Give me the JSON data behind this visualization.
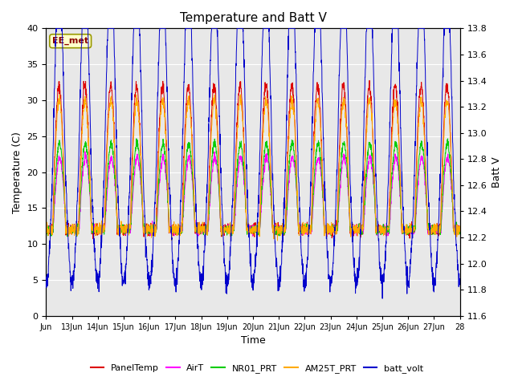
{
  "title": "Temperature and Batt V",
  "ylabel_left": "Temperature (C)",
  "ylabel_right": "Batt V",
  "xlabel": "Time",
  "ylim_left": [
    0,
    40
  ],
  "ylim_right": [
    11.6,
    13.8
  ],
  "yticks_left": [
    0,
    5,
    10,
    15,
    20,
    25,
    30,
    35,
    40
  ],
  "yticks_right": [
    11.6,
    11.8,
    12.0,
    12.2,
    12.4,
    12.6,
    12.8,
    13.0,
    13.2,
    13.4,
    13.6,
    13.8
  ],
  "xtick_positions": [
    0,
    1,
    2,
    3,
    4,
    5,
    6,
    7,
    8,
    9,
    10,
    11,
    12,
    13,
    14,
    15,
    16
  ],
  "xtick_labels": [
    "Jun",
    "13Jun",
    "14Jun",
    "15Jun",
    "16Jun",
    "17Jun",
    "18Jun",
    "19Jun",
    "20Jun",
    "21Jun",
    "22Jun",
    "23Jun",
    "24Jun",
    "25Jun",
    "26Jun",
    "27Jun",
    "28"
  ],
  "station_label": "EE_met",
  "bg_color": "#e8e8e8",
  "legend": [
    {
      "label": "PanelTemp",
      "color": "#dd0000"
    },
    {
      "label": "AirT",
      "color": "#ff00ff"
    },
    {
      "label": "NR01_PRT",
      "color": "#00cc00"
    },
    {
      "label": "AM25T_PRT",
      "color": "#ffaa00"
    },
    {
      "label": "batt_volt",
      "color": "#0000cc"
    }
  ],
  "n_days": 16,
  "temp_base": 12,
  "temp_amp": 12,
  "batt_base": 12.7,
  "batt_amp": 0.85
}
